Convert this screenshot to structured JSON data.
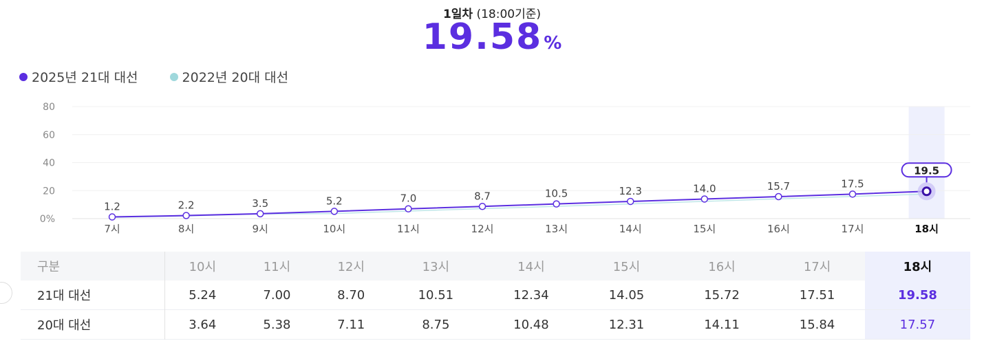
{
  "header": {
    "day_label": "1일차",
    "basis_label": "(18:00기준)",
    "turnout_value": "19.58",
    "turnout_unit": "%"
  },
  "legend": [
    {
      "label": "2025년 21대 대선",
      "color": "#5b2ee0"
    },
    {
      "label": "2022년 20대 대선",
      "color": "#9fd8dc"
    }
  ],
  "chart_data": {
    "type": "line",
    "categories": [
      "7시",
      "8시",
      "9시",
      "10시",
      "11시",
      "12시",
      "13시",
      "14시",
      "15시",
      "16시",
      "17시",
      "18시"
    ],
    "series": [
      {
        "name": "2025년 21대 대선",
        "values": [
          1.2,
          2.2,
          3.5,
          5.2,
          7.0,
          8.7,
          10.5,
          12.3,
          14.0,
          15.7,
          17.5,
          19.5
        ],
        "color": "#5b2ee0"
      },
      {
        "name": "2022년 20대 대선",
        "values": [
          0.9,
          1.9,
          3.3,
          3.64,
          5.38,
          7.11,
          8.75,
          10.48,
          12.31,
          14.11,
          15.84,
          17.57
        ],
        "color": "#bfe6e8"
      }
    ],
    "y_ticks": [
      "0%",
      "20",
      "40",
      "60",
      "80"
    ],
    "ylim": [
      0,
      80
    ],
    "grid": true,
    "highlight_category": "18시",
    "highlight_label": "19.5"
  },
  "table": {
    "corner_label": "구분",
    "headers": [
      "10시",
      "11시",
      "12시",
      "13시",
      "14시",
      "15시",
      "16시",
      "17시",
      "18시"
    ],
    "rows": [
      {
        "label": "21대 대선",
        "values": [
          "5.24",
          "7.00",
          "8.70",
          "10.51",
          "12.34",
          "14.05",
          "15.72",
          "17.51",
          "19.58"
        ]
      },
      {
        "label": "20대 대선",
        "values": [
          "3.64",
          "5.38",
          "7.11",
          "8.75",
          "10.48",
          "12.31",
          "14.11",
          "15.84",
          "17.57"
        ]
      }
    ]
  }
}
